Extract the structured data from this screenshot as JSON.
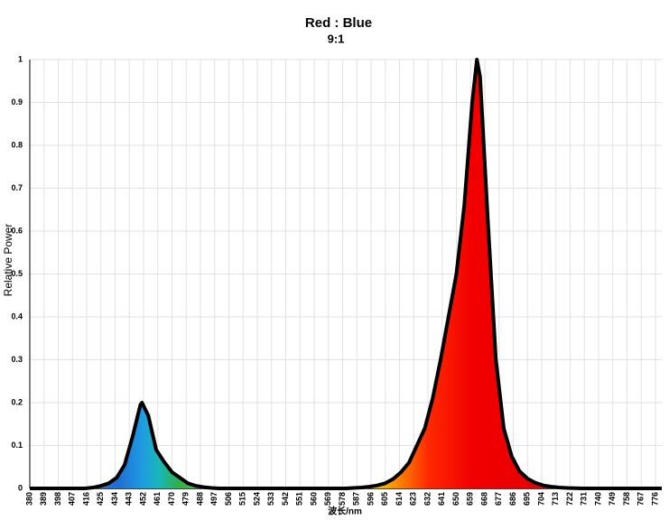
{
  "chart_data": {
    "type": "area",
    "title": "Red : Blue",
    "subtitle": "9:1",
    "x_label": "波长/nm",
    "y_label": "Relative Power",
    "xlim": [
      380,
      780
    ],
    "ylim": [
      0,
      1
    ],
    "xticks": [
      380,
      389,
      398,
      407,
      416,
      425,
      434,
      443,
      452,
      461,
      470,
      479,
      488,
      497,
      506,
      515,
      524,
      533,
      542,
      551,
      560,
      569,
      578,
      587,
      596,
      605,
      614,
      623,
      632,
      641,
      650,
      659,
      668,
      677,
      686,
      695,
      704,
      713,
      722,
      731,
      740,
      749,
      758,
      767,
      776
    ],
    "yticks": [
      0,
      0.1,
      0.2,
      0.3,
      0.4,
      0.5,
      0.6,
      0.7,
      0.8,
      0.9,
      1
    ],
    "grid": true,
    "color": "#000000",
    "x": [
      380,
      385,
      390,
      395,
      400,
      405,
      410,
      415,
      420,
      425,
      430,
      435,
      440,
      445,
      450,
      451,
      455,
      460,
      465,
      470,
      475,
      480,
      485,
      490,
      495,
      500,
      510,
      520,
      530,
      540,
      550,
      560,
      570,
      580,
      590,
      595,
      600,
      605,
      610,
      615,
      620,
      625,
      630,
      635,
      640,
      645,
      650,
      655,
      660,
      663,
      665,
      670,
      675,
      680,
      685,
      690,
      695,
      700,
      705,
      710,
      715,
      720,
      730,
      740,
      750,
      760,
      770,
      780
    ],
    "values": [
      0,
      0,
      0,
      0,
      0,
      0,
      0,
      0,
      0.002,
      0.006,
      0.012,
      0.025,
      0.055,
      0.12,
      0.195,
      0.2,
      0.17,
      0.09,
      0.062,
      0.038,
      0.025,
      0.012,
      0.006,
      0.003,
      0.001,
      0,
      0,
      0,
      0,
      0,
      0,
      0,
      0,
      0,
      0.002,
      0.004,
      0.007,
      0.012,
      0.022,
      0.038,
      0.06,
      0.1,
      0.14,
      0.21,
      0.3,
      0.4,
      0.5,
      0.66,
      0.9,
      1,
      0.96,
      0.62,
      0.3,
      0.14,
      0.075,
      0.04,
      0.023,
      0.013,
      0.007,
      0.004,
      0.002,
      0.001,
      0,
      0,
      0,
      0,
      0,
      0
    ]
  }
}
